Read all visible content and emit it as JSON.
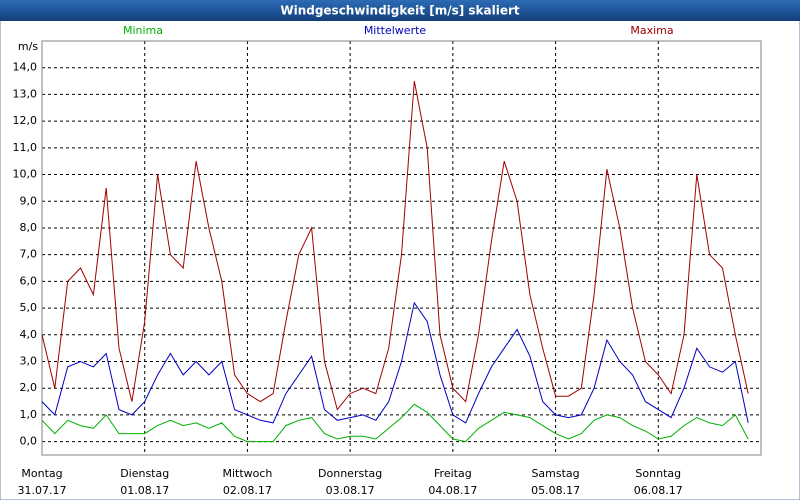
{
  "chart_data": {
    "type": "line",
    "title": "Windgeschwindigkeit [m/s] skaliert",
    "y_label": "m/s",
    "x": [
      0,
      3,
      6,
      9,
      12,
      15,
      18,
      21,
      24,
      27,
      30,
      33,
      36,
      39,
      42,
      45,
      48,
      51,
      54,
      57,
      60,
      63,
      66,
      69,
      72,
      75,
      78,
      81,
      84,
      87,
      90,
      93,
      96,
      99,
      102,
      105,
      108,
      111,
      114,
      117,
      120,
      123,
      126,
      129,
      132,
      135,
      138,
      141,
      144,
      147,
      150,
      153,
      156,
      159,
      162,
      165
    ],
    "xlim": [
      0,
      168
    ],
    "xticks": [
      {
        "value": 0,
        "label": "Montag",
        "date": "31.07.17"
      },
      {
        "value": 24,
        "label": "Dienstag",
        "date": "01.08.17"
      },
      {
        "value": 48,
        "label": "Mittwoch",
        "date": "02.08.17"
      },
      {
        "value": 72,
        "label": "Donnerstag",
        "date": "03.08.17"
      },
      {
        "value": 96,
        "label": "Freitag",
        "date": "04.08.17"
      },
      {
        "value": 120,
        "label": "Samstag",
        "date": "05.08.17"
      },
      {
        "value": 144,
        "label": "Sonntag",
        "date": "06.08.17"
      }
    ],
    "ylim": [
      -0.5,
      15
    ],
    "yticks": [
      {
        "value": 0,
        "label": "0,0"
      },
      {
        "value": 1,
        "label": "1,0"
      },
      {
        "value": 2,
        "label": "2,0"
      },
      {
        "value": 3,
        "label": "3,0"
      },
      {
        "value": 4,
        "label": "4,0"
      },
      {
        "value": 5,
        "label": "5,0"
      },
      {
        "value": 6,
        "label": "6,0"
      },
      {
        "value": 7,
        "label": "7,0"
      },
      {
        "value": 8,
        "label": "8,0"
      },
      {
        "value": 9,
        "label": "9,0"
      },
      {
        "value": 10,
        "label": "10,0"
      },
      {
        "value": 11,
        "label": "11,0"
      },
      {
        "value": 12,
        "label": "12,0"
      },
      {
        "value": 13,
        "label": "13,0"
      },
      {
        "value": 14,
        "label": "14,0"
      }
    ],
    "grid": true,
    "series": [
      {
        "name": "Minima",
        "color": "#00b000",
        "values": [
          0.8,
          0.3,
          0.8,
          0.6,
          0.5,
          1.0,
          0.3,
          0.3,
          0.3,
          0.6,
          0.8,
          0.6,
          0.7,
          0.5,
          0.7,
          0.2,
          0.0,
          0.0,
          0.0,
          0.6,
          0.8,
          0.9,
          0.3,
          0.1,
          0.2,
          0.2,
          0.1,
          0.5,
          0.9,
          1.4,
          1.1,
          0.6,
          0.1,
          0.0,
          0.5,
          0.8,
          1.1,
          1.0,
          0.9,
          0.6,
          0.3,
          0.1,
          0.3,
          0.8,
          1.0,
          0.9,
          0.6,
          0.4,
          0.1,
          0.2,
          0.6,
          0.9,
          0.7,
          0.6,
          1.0,
          0.1
        ]
      },
      {
        "name": "Mittelwerte",
        "color": "#0000c0",
        "values": [
          1.5,
          1.0,
          2.8,
          3.0,
          2.8,
          3.3,
          1.2,
          1.0,
          1.5,
          2.5,
          3.3,
          2.5,
          3.0,
          2.5,
          3.0,
          1.2,
          1.0,
          0.8,
          0.7,
          1.8,
          2.5,
          3.2,
          1.2,
          0.8,
          0.9,
          1.0,
          0.8,
          1.5,
          3.0,
          5.2,
          4.5,
          2.5,
          1.0,
          0.7,
          1.8,
          2.8,
          3.5,
          4.2,
          3.2,
          1.5,
          1.0,
          0.9,
          1.0,
          2.0,
          3.8,
          3.0,
          2.5,
          1.5,
          1.2,
          0.9,
          2.0,
          3.5,
          2.8,
          2.6,
          3.0,
          0.7
        ]
      },
      {
        "name": "Maxima",
        "color": "#a00000",
        "values": [
          4.0,
          2.0,
          6.0,
          6.5,
          5.5,
          9.5,
          3.5,
          1.5,
          4.5,
          10.0,
          7.0,
          6.5,
          10.5,
          8.0,
          6.0,
          2.5,
          1.8,
          1.5,
          1.8,
          4.5,
          7.0,
          8.0,
          3.0,
          1.2,
          1.8,
          2.0,
          1.8,
          3.5,
          7.0,
          13.5,
          11.0,
          4.0,
          2.0,
          1.5,
          4.0,
          7.5,
          10.5,
          9.0,
          5.5,
          3.5,
          1.7,
          1.7,
          2.0,
          5.5,
          10.2,
          8.0,
          5.0,
          3.0,
          2.5,
          1.8,
          4.0,
          10.0,
          7.0,
          6.5,
          4.0,
          1.8
        ]
      }
    ]
  }
}
